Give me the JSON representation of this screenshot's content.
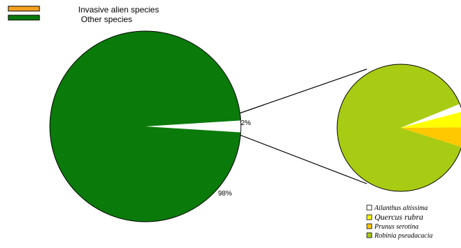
{
  "chart_data": [
    {
      "type": "pie",
      "legend": [
        {
          "label": "Invasive alien species",
          "color": "#f5a020"
        },
        {
          "label": "Other species",
          "color": "#0a7a0a"
        }
      ],
      "slices": [
        {
          "name": "Other species",
          "value": 98,
          "label": "98%",
          "color": "#0a7a0a"
        },
        {
          "name": "Invasive alien species",
          "value": 2,
          "label": "2%",
          "color": "#ffffff"
        }
      ]
    },
    {
      "type": "pie",
      "legend": [
        {
          "label": "Ailanthus altissima",
          "color": "#ffffff"
        },
        {
          "label": "Quercus rubra",
          "color": "#ffff00"
        },
        {
          "label": "Prunus serotina",
          "color": "#ffc800"
        },
        {
          "label": "Robinia pseudacacia",
          "color": "#a8cc14"
        }
      ],
      "slices": [
        {
          "name": "Ailanthus altissima",
          "value": 2,
          "color": "#ffffff"
        },
        {
          "name": "Quercus rubra",
          "value": 4,
          "color": "#ffff00"
        },
        {
          "name": "Prunus serotina",
          "value": 5,
          "color": "#ffc800"
        },
        {
          "name": "Robinia pseudacacia",
          "value": 89,
          "color": "#a8cc14"
        }
      ]
    }
  ]
}
